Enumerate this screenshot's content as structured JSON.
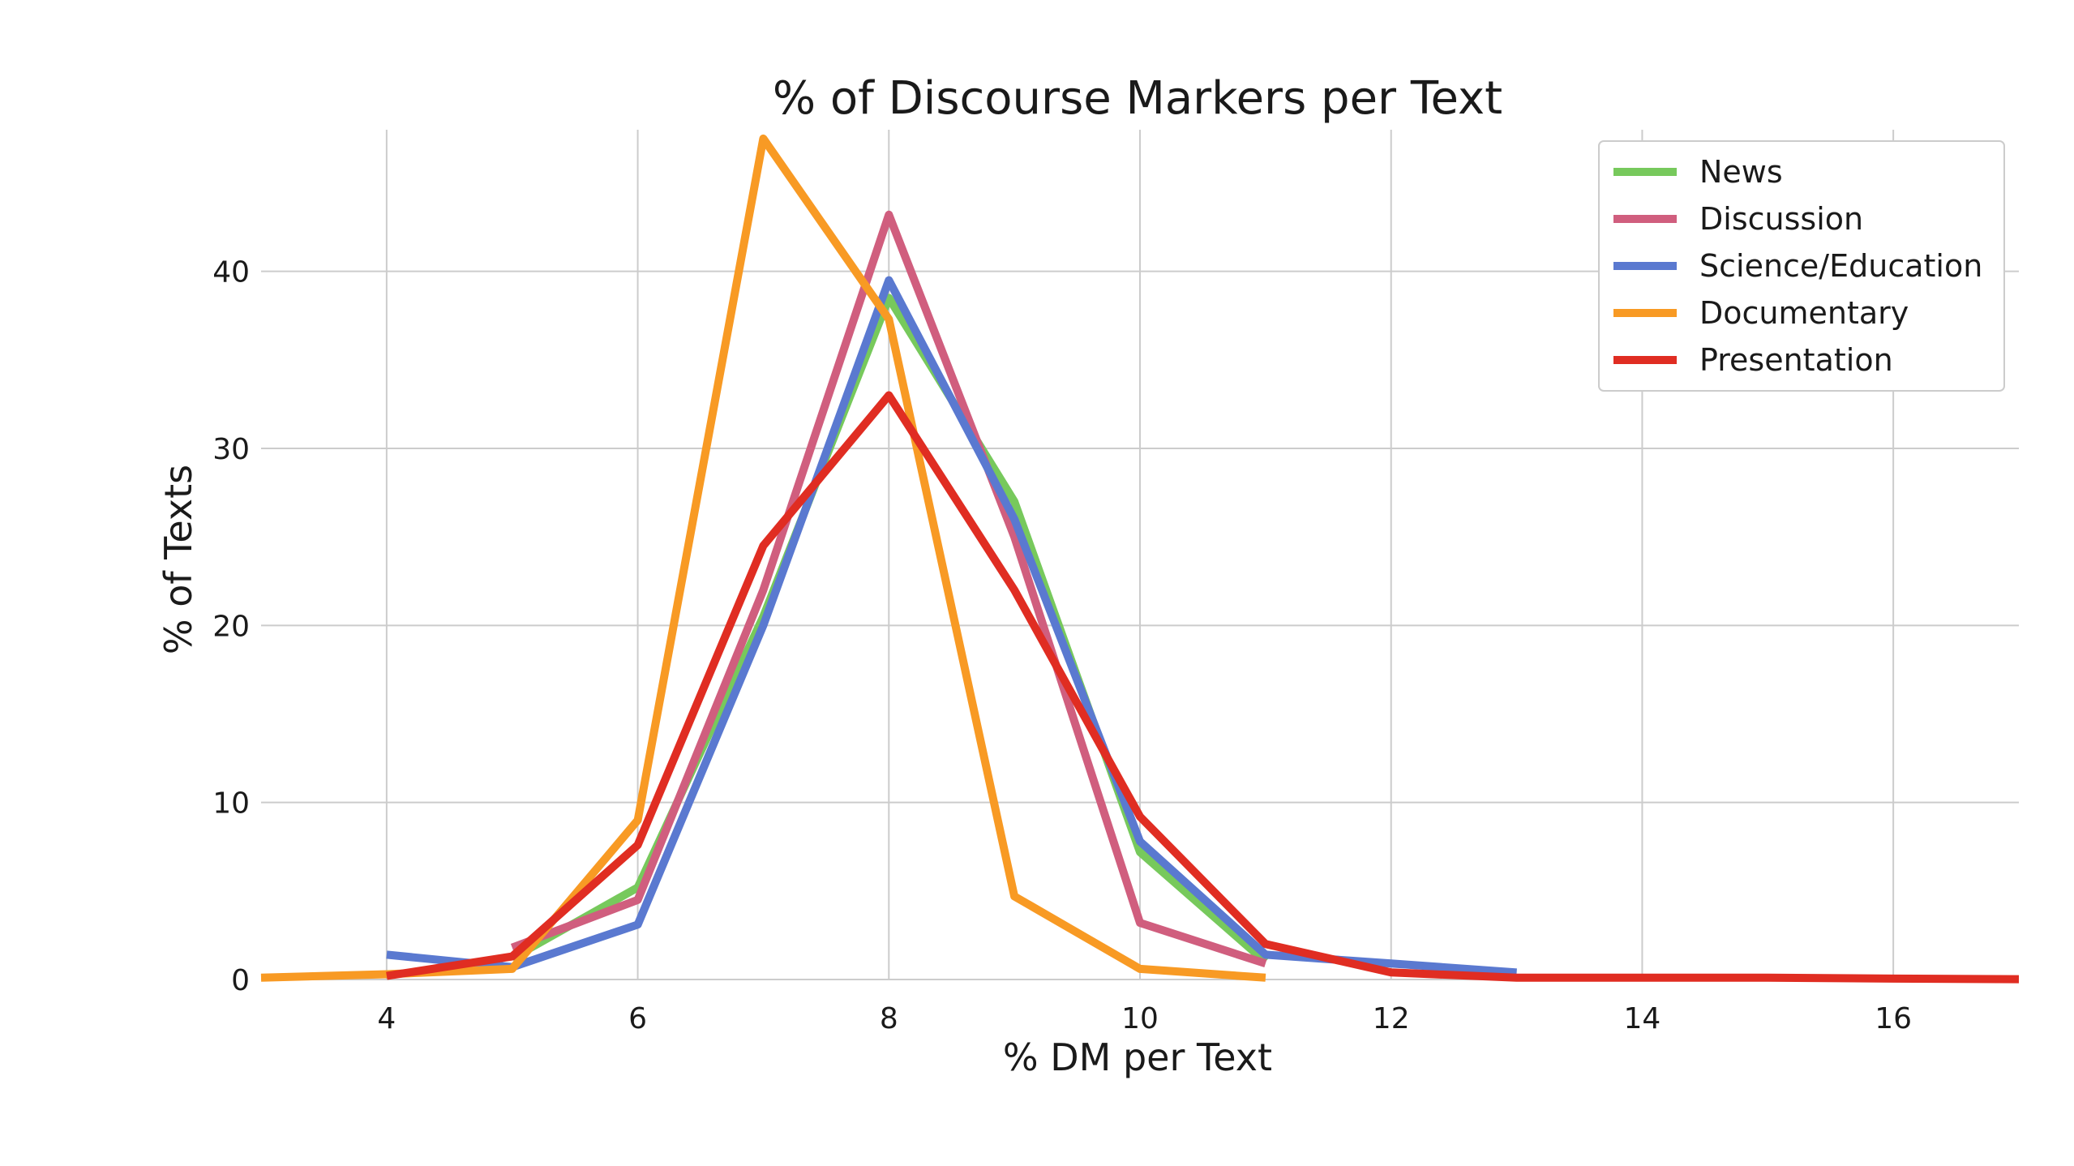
{
  "chart_data": {
    "type": "line",
    "title": "% of Discourse Markers per Text",
    "xlabel": "% DM per Text",
    "ylabel": "% of Texts",
    "xlim": [
      3,
      17
    ],
    "ylim": [
      0,
      48
    ],
    "xticks": [
      4,
      6,
      8,
      10,
      12,
      14,
      16
    ],
    "yticks": [
      0,
      10,
      20,
      30,
      40
    ],
    "grid": true,
    "legend_position": "top-right",
    "series": [
      {
        "name": "News",
        "color": "#77c95c",
        "x": [
          5,
          6,
          7,
          8,
          9,
          10,
          11
        ],
        "y": [
          1.2,
          5.2,
          20.5,
          38.5,
          27.0,
          7.2,
          1.0
        ]
      },
      {
        "name": "Discussion",
        "color": "#d05e7e",
        "x": [
          5,
          6,
          7,
          8,
          9,
          10,
          11
        ],
        "y": [
          1.8,
          4.5,
          22.0,
          43.2,
          25.0,
          3.2,
          0.9
        ]
      },
      {
        "name": "Science/Education",
        "color": "#5a79d0",
        "x": [
          4,
          5,
          6,
          7,
          8,
          9,
          10,
          11,
          12,
          13
        ],
        "y": [
          1.4,
          0.7,
          3.1,
          20.0,
          39.5,
          26.0,
          7.8,
          1.4,
          0.9,
          0.4
        ]
      },
      {
        "name": "Documentary",
        "color": "#f89a24",
        "x": [
          3,
          4,
          5,
          6,
          7,
          8,
          9,
          10,
          11
        ],
        "y": [
          0.1,
          0.3,
          0.6,
          9.0,
          47.5,
          37.3,
          4.7,
          0.6,
          0.1
        ]
      },
      {
        "name": "Presentation",
        "color": "#e02d22",
        "x": [
          4,
          5,
          6,
          7,
          8,
          9,
          10,
          11,
          12,
          13,
          14,
          15,
          16,
          17
        ],
        "y": [
          0.2,
          1.3,
          7.6,
          24.5,
          33.0,
          22.0,
          9.2,
          2.0,
          0.4,
          0.1,
          0.1,
          0.1,
          0.05,
          0.02
        ]
      }
    ]
  }
}
